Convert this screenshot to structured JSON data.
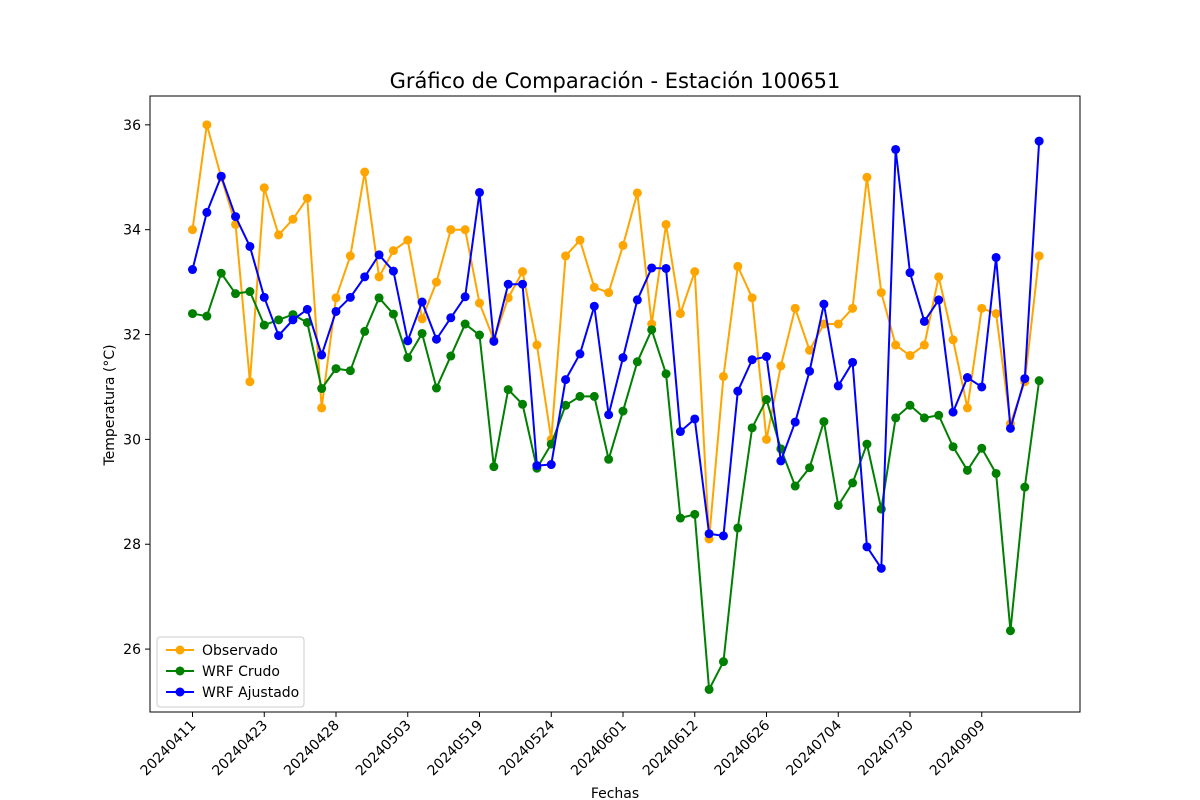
{
  "chart_data": {
    "type": "line",
    "title": "Gráfico de Comparación - Estación 100651",
    "xlabel": "Fechas",
    "ylabel": "Temperatura (°C)",
    "ylim": [
      24.8,
      36.55
    ],
    "yticks": [
      26,
      28,
      30,
      32,
      34,
      36
    ],
    "x_tick_labels": [
      "20240411",
      "20240423",
      "20240428",
      "20240503",
      "20240519",
      "20240524",
      "20240601",
      "20240612",
      "20240626",
      "20240704",
      "20240730",
      "20240909"
    ],
    "x_tick_indices": [
      0,
      5,
      10,
      15,
      20,
      25,
      30,
      35,
      40,
      45,
      50,
      55
    ],
    "legend_position": "lower-left",
    "grid": false,
    "point_count": 60,
    "series": [
      {
        "name": "Observado",
        "color": "#ffa500",
        "values": [
          34.0,
          36.0,
          35.0,
          34.1,
          31.1,
          34.8,
          33.9,
          34.2,
          34.6,
          30.6,
          32.7,
          33.5,
          35.1,
          33.1,
          33.6,
          33.8,
          32.3,
          33.0,
          34.0,
          34.0,
          32.6,
          31.9,
          32.7,
          33.2,
          31.8,
          30.0,
          33.5,
          33.8,
          32.9,
          32.8,
          33.7,
          34.7,
          32.2,
          34.1,
          32.4,
          33.2,
          28.1,
          31.2,
          33.3,
          32.7,
          30.0,
          31.4,
          32.5,
          31.7,
          32.2,
          32.2,
          32.5,
          35.0,
          32.8,
          31.8,
          31.6,
          31.8,
          33.1,
          31.9,
          30.6,
          32.5,
          32.4,
          30.3,
          31.1,
          33.5
        ]
      },
      {
        "name": "WRF Crudo",
        "color": "#008000",
        "values": [
          32.4,
          32.35,
          33.17,
          32.78,
          32.82,
          32.18,
          32.28,
          32.38,
          32.23,
          30.97,
          31.35,
          31.31,
          32.06,
          32.7,
          32.39,
          31.56,
          32.02,
          30.98,
          31.59,
          32.2,
          31.99,
          29.48,
          30.95,
          30.67,
          29.45,
          29.91,
          30.65,
          30.82,
          30.82,
          29.62,
          30.54,
          31.48,
          32.09,
          31.25,
          28.5,
          28.57,
          25.23,
          25.76,
          28.31,
          30.22,
          30.76,
          29.82,
          29.11,
          29.46,
          30.34,
          28.74,
          29.17,
          29.91,
          28.67,
          30.41,
          30.65,
          30.41,
          30.46,
          29.86,
          29.41,
          29.83,
          29.35,
          26.35,
          29.09,
          31.12
        ]
      },
      {
        "name": "WRF Ajustado",
        "color": "#0000ff",
        "values": [
          33.24,
          34.33,
          35.02,
          34.25,
          33.68,
          32.71,
          31.98,
          32.28,
          32.48,
          31.61,
          32.44,
          32.71,
          33.1,
          33.52,
          33.21,
          31.88,
          32.62,
          31.91,
          32.32,
          32.72,
          34.71,
          31.87,
          32.96,
          32.96,
          29.5,
          29.52,
          31.14,
          31.63,
          32.54,
          30.47,
          31.56,
          32.66,
          33.27,
          33.26,
          30.15,
          30.39,
          28.2,
          28.16,
          30.92,
          31.52,
          31.58,
          29.59,
          30.33,
          31.3,
          32.58,
          31.02,
          31.47,
          27.95,
          27.54,
          35.53,
          33.18,
          32.25,
          32.66,
          30.52,
          31.18,
          31.0,
          33.47,
          30.21,
          31.16,
          35.69
        ]
      }
    ]
  }
}
